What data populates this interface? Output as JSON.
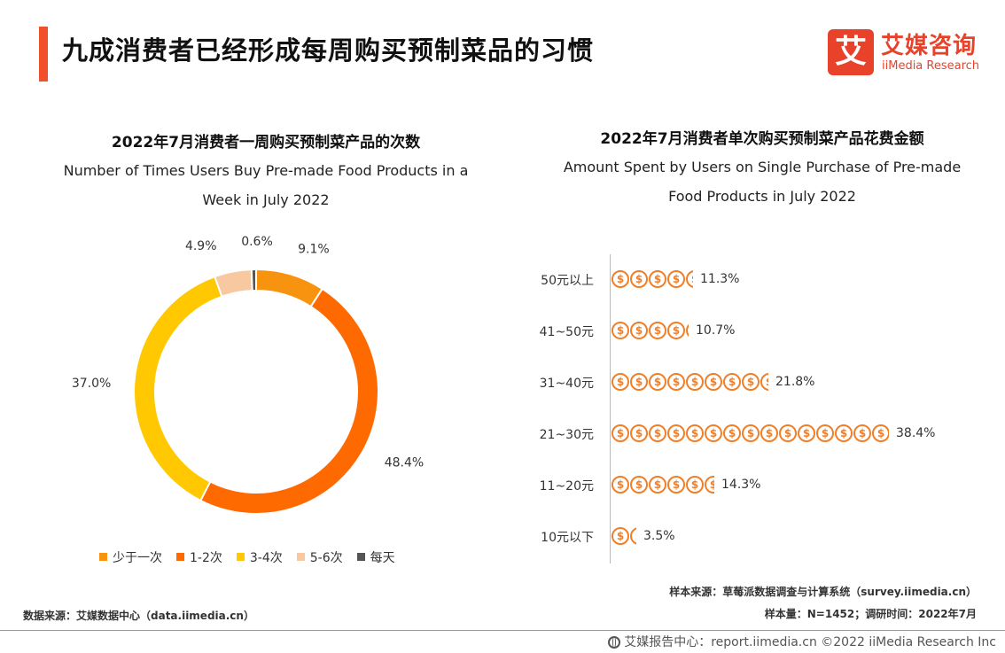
{
  "page": {
    "title": "九成消费者已经形成每周购买预制菜品的习惯"
  },
  "logo": {
    "mark": "艾",
    "cn": "艾媒咨询",
    "en": "iiMedia Research"
  },
  "chart_data": [
    {
      "type": "pie",
      "title": "2022年7月消费者一周购买预制菜产品的次数",
      "subtitle": "Number of Times Users Buy Pre-made Food Products in a Week in July 2022",
      "categories": [
        "少于一次",
        "1-2次",
        "3-4次",
        "5-6次",
        "每天"
      ],
      "values": [
        9.1,
        48.4,
        37.0,
        4.9,
        0.6
      ],
      "value_labels": [
        "9.1%",
        "48.4%",
        "37.0%",
        "4.9%",
        "0.6%"
      ],
      "colors": [
        "#f7930e",
        "#ff6a00",
        "#ffc800",
        "#f8c9a0",
        "#555555"
      ],
      "donut": true,
      "legend": "bottom"
    },
    {
      "type": "bar",
      "orientation": "horizontal",
      "title": "2022年7月消费者单次购买预制菜产品花费金额",
      "subtitle": "Amount Spent by Users on Single Purchase of Pre-made Food Products in July 2022",
      "categories": [
        "50元以上",
        "41~50元",
        "31~40元",
        "21~30元",
        "11~20元",
        "10元以下"
      ],
      "values": [
        11.3,
        10.7,
        21.8,
        38.4,
        14.3,
        3.5
      ],
      "value_labels": [
        "11.3%",
        "10.7%",
        "21.8%",
        "38.4%",
        "14.3%",
        "3.5%"
      ],
      "coin_symbol": "$",
      "color": "#f07f2a"
    }
  ],
  "notes": {
    "sample_source": "样本来源：草莓派数据调查与计算系统（survey.iimedia.cn）",
    "sample_size": "样本量：N=1452；调研时间：2022年7月",
    "data_source": "数据来源：艾媒数据中心（data.iimedia.cn）"
  },
  "footer": {
    "text": "艾媒报告中心：report.iimedia.cn   ©2022  iiMedia Research  Inc",
    "globe_icon": "globe-icon"
  }
}
